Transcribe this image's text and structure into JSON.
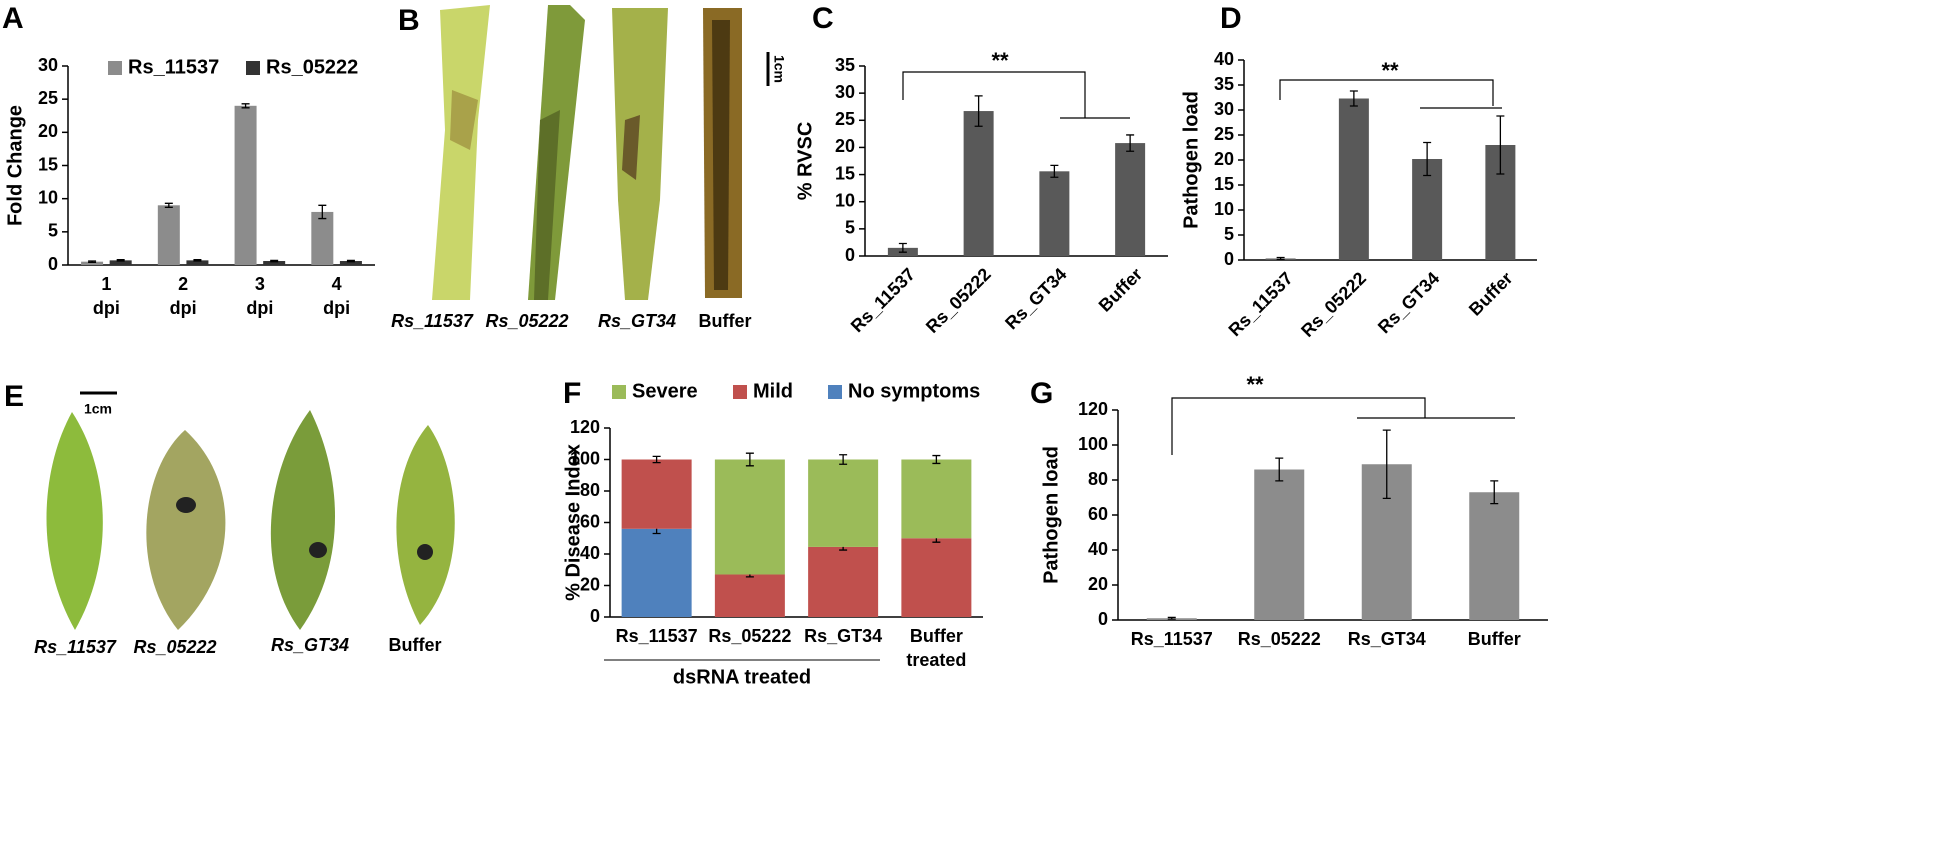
{
  "chart_data": [
    {
      "panel": "A",
      "type": "bar",
      "y_label": "Fold Change",
      "categories": [
        "1 dpi",
        "2 dpi",
        "3 dpi",
        "4 dpi"
      ],
      "series": [
        {
          "name": "Rs_11537",
          "color": "#8c8c8c",
          "values": [
            0.5,
            9,
            24,
            8
          ],
          "errors": [
            0.1,
            0.3,
            0.3,
            1
          ]
        },
        {
          "name": "Rs_05222",
          "color": "#333333",
          "values": [
            0.7,
            0.7,
            0.6,
            0.6
          ],
          "errors": [
            0.1,
            0.1,
            0.1,
            0.1
          ]
        }
      ],
      "ylim": [
        0,
        30
      ],
      "yticks": [
        0,
        5,
        10,
        15,
        20,
        25,
        30
      ]
    },
    {
      "panel": "C",
      "type": "bar",
      "y_label": "% RVSC",
      "categories": [
        "Rs_11537",
        "Rs_05222",
        "Rs_GT34",
        "Buffer"
      ],
      "values": [
        1.5,
        26.7,
        15.6,
        20.8
      ],
      "errors": [
        0.8,
        2.8,
        1.1,
        1.5
      ],
      "color": "#595959",
      "ylim": [
        0,
        35
      ],
      "yticks": [
        0,
        5,
        10,
        15,
        20,
        25,
        30,
        35
      ],
      "annotation": "**"
    },
    {
      "panel": "D",
      "type": "bar",
      "y_label": "Pathogen load",
      "categories": [
        "Rs_11537",
        "Rs_05222",
        "Rs_GT34",
        "Buffer"
      ],
      "values": [
        0.3,
        32.3,
        20.2,
        23.0
      ],
      "errors": [
        0.2,
        1.5,
        3.3,
        5.8
      ],
      "color": "#595959",
      "ylim": [
        0,
        40
      ],
      "yticks": [
        0,
        5,
        10,
        15,
        20,
        25,
        30,
        35,
        40
      ],
      "annotation": "**"
    },
    {
      "panel": "F",
      "type": "stacked_bar",
      "y_label": "% Disease Index",
      "categories": [
        "Rs_11537",
        "Rs_05222",
        "Rs_GT34",
        "Buffer treated"
      ],
      "series": [
        {
          "name": "No symptoms",
          "color": "#4f81bd",
          "values": [
            56,
            0,
            0,
            0
          ],
          "errors": [
            3,
            0,
            0,
            0
          ]
        },
        {
          "name": "Mild",
          "color": "#c0504d",
          "values": [
            44,
            27,
            44.5,
            50
          ],
          "errors": [
            2,
            1.5,
            2,
            2.5
          ]
        },
        {
          "name": "Severe",
          "color": "#9bbb59",
          "values": [
            0,
            73,
            55.5,
            50
          ],
          "errors": [
            0,
            4,
            3,
            2.5
          ]
        }
      ],
      "ylim": [
        0,
        120
      ],
      "yticks": [
        0,
        20,
        40,
        60,
        80,
        100,
        120
      ],
      "group_label": "dsRNA treated"
    },
    {
      "panel": "G",
      "type": "bar",
      "y_label": "Pathogen load",
      "categories": [
        "Rs_11537",
        "Rs_05222",
        "Rs_GT34",
        "Buffer"
      ],
      "values": [
        1,
        86,
        89,
        73
      ],
      "errors": [
        0.5,
        6.5,
        19.5,
        6.5
      ],
      "color": "#8c8c8c",
      "ylim": [
        0,
        120
      ],
      "yticks": [
        0,
        20,
        40,
        60,
        80,
        100,
        120
      ],
      "annotation": "**"
    }
  ],
  "images": [
    {
      "panel": "B",
      "labels": [
        "Rs_11537",
        "Rs_05222",
        "Rs_GT34",
        "Buffer"
      ],
      "scale": "1cm"
    },
    {
      "panel": "E",
      "labels": [
        "Rs_11537",
        "Rs_05222",
        "Rs_GT34",
        "Buffer"
      ],
      "scale": "1cm"
    }
  ]
}
